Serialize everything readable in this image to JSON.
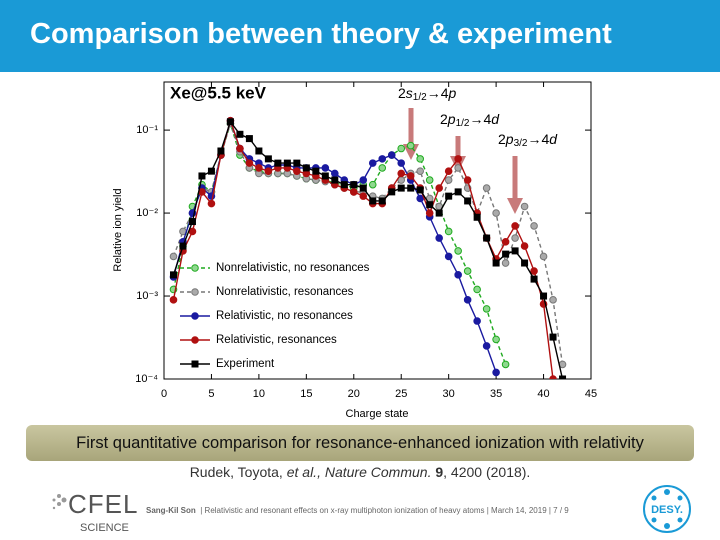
{
  "slide": {
    "title": "Comparison between theory & experiment",
    "banner": "First quantitative comparison for resonance-enhanced ionization with relativity",
    "citation": {
      "authors": "Rudek, Toyota,",
      "etal": "et al.,",
      "journal": "Nature Commun.",
      "volume": "9",
      "rest": ", 4200 (2018)."
    },
    "footer": {
      "author": "Sang-Kil Son",
      "text": "| Relativistic and resonant effects on x-ray multiphoton ionization of heavy atoms | March 14, 2019 | 7 / 9"
    },
    "logo_left": {
      "name": "CFEL",
      "sub": "SCIENCE"
    },
    "logo_right": "DESY."
  },
  "chart_data": {
    "type": "line",
    "title": "Xe@5.5 keV",
    "xlabel": "Charge state",
    "ylabel": "Relative ion yield",
    "log_y": true,
    "xlim": [
      0,
      45
    ],
    "xticks": [
      0,
      5,
      10,
      15,
      20,
      25,
      30,
      35,
      40,
      45
    ],
    "ylim": [
      0.0001,
      0.38
    ],
    "yticks": [
      {
        "value": 0.0001,
        "label": "10⁻⁴"
      },
      {
        "value": 0.001,
        "label": "10⁻³"
      },
      {
        "value": 0.01,
        "label": "10⁻²"
      },
      {
        "value": 0.1,
        "label": "10⁻¹"
      }
    ],
    "legend": "lower left",
    "annotations": [
      [
        "2",
        "s",
        "1/2",
        "→4",
        "p"
      ],
      [
        "2",
        "p",
        "1/2",
        "→4",
        "d"
      ],
      [
        "2",
        "p",
        "3/2",
        "→4",
        "d"
      ]
    ],
    "series": [
      {
        "name": "Nonrelativistic, no resonances",
        "color": "#1faa1f",
        "linestyle": "dashed",
        "marker": "circle",
        "x": [
          1,
          2,
          3,
          4,
          5,
          6,
          7,
          8,
          9,
          10,
          11,
          12,
          13,
          14,
          15,
          16,
          17,
          18,
          19,
          20,
          21,
          22,
          23,
          24,
          25,
          26,
          27,
          28,
          29,
          30,
          31,
          32,
          33,
          34,
          35,
          36
        ],
        "values": [
          0.0012,
          0.004,
          0.012,
          0.022,
          0.018,
          0.05,
          0.12,
          0.05,
          0.035,
          0.032,
          0.03,
          0.03,
          0.03,
          0.028,
          0.026,
          0.025,
          0.025,
          0.023,
          0.022,
          0.02,
          0.022,
          0.022,
          0.035,
          0.05,
          0.06,
          0.065,
          0.045,
          0.025,
          0.012,
          0.006,
          0.0035,
          0.002,
          0.0012,
          0.0007,
          0.0003,
          0.00015
        ]
      },
      {
        "name": "Nonrelativistic, resonances",
        "color": "#777777",
        "linestyle": "dashed",
        "marker": "circle",
        "x": [
          1,
          2,
          3,
          4,
          5,
          6,
          7,
          8,
          9,
          10,
          11,
          12,
          13,
          14,
          15,
          16,
          17,
          18,
          19,
          20,
          21,
          22,
          23,
          24,
          25,
          26,
          27,
          28,
          29,
          30,
          31,
          32,
          33,
          34,
          35,
          36,
          37,
          38,
          39,
          40,
          41,
          42
        ],
        "values": [
          0.003,
          0.006,
          0.01,
          0.02,
          0.018,
          0.05,
          0.12,
          0.055,
          0.035,
          0.03,
          0.03,
          0.03,
          0.03,
          0.028,
          0.026,
          0.025,
          0.024,
          0.022,
          0.02,
          0.018,
          0.018,
          0.016,
          0.015,
          0.02,
          0.025,
          0.03,
          0.032,
          0.015,
          0.012,
          0.025,
          0.035,
          0.02,
          0.01,
          0.02,
          0.01,
          0.0025,
          0.005,
          0.012,
          0.007,
          0.003,
          0.0009,
          0.00015
        ]
      },
      {
        "name": "Relativistic, no resonances",
        "color": "#1a1aa0",
        "linestyle": "solid",
        "marker": "circle",
        "x": [
          1,
          2,
          3,
          4,
          5,
          6,
          7,
          8,
          9,
          10,
          11,
          12,
          13,
          14,
          15,
          16,
          17,
          18,
          19,
          20,
          21,
          22,
          23,
          24,
          25,
          26,
          27,
          28,
          29,
          30,
          31,
          32,
          33,
          34,
          35
        ],
        "values": [
          0.0017,
          0.0045,
          0.01,
          0.02,
          0.016,
          0.05,
          0.13,
          0.06,
          0.045,
          0.04,
          0.035,
          0.038,
          0.038,
          0.035,
          0.035,
          0.035,
          0.035,
          0.03,
          0.025,
          0.022,
          0.025,
          0.04,
          0.045,
          0.05,
          0.04,
          0.025,
          0.015,
          0.009,
          0.005,
          0.003,
          0.0018,
          0.0009,
          0.0005,
          0.00025,
          0.00012
        ]
      },
      {
        "name": "Relativistic, resonances",
        "color": "#b01010",
        "linestyle": "solid",
        "marker": "circle",
        "x": [
          1,
          2,
          3,
          4,
          5,
          6,
          7,
          8,
          9,
          10,
          11,
          12,
          13,
          14,
          15,
          16,
          17,
          18,
          19,
          20,
          21,
          22,
          23,
          24,
          25,
          26,
          27,
          28,
          29,
          30,
          31,
          32,
          33,
          34,
          35,
          36,
          37,
          38,
          39,
          40,
          41
        ],
        "values": [
          0.0009,
          0.0035,
          0.006,
          0.018,
          0.013,
          0.05,
          0.13,
          0.06,
          0.04,
          0.035,
          0.032,
          0.035,
          0.035,
          0.032,
          0.03,
          0.028,
          0.025,
          0.022,
          0.02,
          0.018,
          0.016,
          0.013,
          0.013,
          0.02,
          0.03,
          0.028,
          0.02,
          0.01,
          0.02,
          0.032,
          0.045,
          0.025,
          0.01,
          0.005,
          0.0028,
          0.0045,
          0.007,
          0.004,
          0.002,
          0.0008,
          0.0001
        ]
      },
      {
        "name": "Experiment",
        "color": "#000000",
        "linestyle": "solid",
        "marker": "square",
        "x": [
          1,
          2,
          3,
          4,
          5,
          6,
          7,
          8,
          9,
          10,
          11,
          12,
          13,
          14,
          15,
          16,
          17,
          18,
          19,
          20,
          21,
          22,
          23,
          24,
          25,
          26,
          27,
          28,
          29,
          30,
          31,
          32,
          33,
          34,
          35,
          36,
          37,
          38,
          39,
          40,
          41,
          42
        ],
        "values": [
          0.0018,
          0.004,
          0.0079,
          0.028,
          0.032,
          0.056,
          0.126,
          0.089,
          0.079,
          0.056,
          0.045,
          0.04,
          0.04,
          0.04,
          0.035,
          0.032,
          0.028,
          0.025,
          0.022,
          0.022,
          0.02,
          0.014,
          0.014,
          0.018,
          0.02,
          0.02,
          0.019,
          0.0126,
          0.01,
          0.016,
          0.018,
          0.014,
          0.0089,
          0.005,
          0.0025,
          0.0032,
          0.0035,
          0.0025,
          0.0016,
          0.001,
          0.00032,
          0.0001
        ]
      }
    ]
  }
}
